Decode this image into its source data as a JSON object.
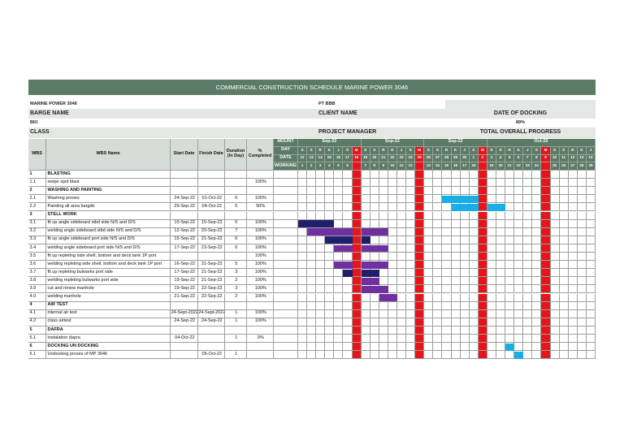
{
  "title": "COMMERCIAL CONSTRUCTION SCHEDULE MARINE POWER 3046",
  "info": {
    "vessel": "MARINE POWER 3046",
    "client": "PT BBB",
    "barge_label": "BARGE NAME",
    "client_label": "CLIENT NAME",
    "docking_label": "DATE OF DOCKING",
    "class_value": "BKI",
    "progress_value": "89%",
    "class_label": "CLASS",
    "manager_label": "PROJECT MANAGER",
    "progress_label": "TOTAL OVERALL PROGRESS"
  },
  "table": {
    "headers": [
      "WBS",
      "WBS Name",
      "Start Date",
      "Finish Date",
      "Duration (In Day)",
      "% Completed"
    ],
    "gantt_labels": [
      "MOUNT",
      "DAY",
      "DATE",
      "WORKING"
    ],
    "months": [
      "Sep-22",
      null,
      null,
      null,
      null,
      null,
      null,
      "Sep-22",
      null,
      null,
      null,
      null,
      null,
      null,
      "Sep-22",
      null,
      null,
      null,
      null,
      null,
      null,
      "Oct-22",
      null,
      null,
      null,
      null,
      null,
      null,
      null,
      null,
      null,
      null,
      null
    ],
    "days": [
      "S",
      "S",
      "R",
      "K",
      "J",
      "S",
      "M",
      "S",
      "S",
      "R",
      "K",
      "J",
      "S",
      "M",
      "S",
      "S",
      "R",
      "K",
      "J",
      "S",
      "M",
      "S",
      "S",
      "R",
      "K",
      "J",
      "S",
      "M",
      "S",
      "S",
      "R",
      "K",
      "J"
    ],
    "dates": [
      "12",
      "13",
      "14",
      "15",
      "16",
      "17",
      "18",
      "19",
      "20",
      "21",
      "22",
      "23",
      "24",
      "25",
      "26",
      "27",
      "28",
      "29",
      "30",
      "1",
      "2",
      "3",
      "4",
      "5",
      "6",
      "7",
      "8",
      "9",
      "10",
      "11",
      "12",
      "13",
      "14"
    ],
    "working": [
      "1",
      "2",
      "3",
      "4",
      "5",
      "6",
      null,
      "7",
      "8",
      "9",
      "10",
      "11",
      "12",
      null,
      "13",
      "14",
      "15",
      "16",
      "17",
      "18",
      null,
      "19",
      "20",
      "21",
      "22",
      "23",
      "24",
      null,
      "25",
      "26",
      "27",
      "28",
      "29"
    ],
    "holidays": [
      6,
      13,
      20,
      27
    ],
    "holiday_color": "#e8141c",
    "rows": [
      {
        "wbs": "1",
        "name": "BLASTING",
        "section": true
      },
      {
        "wbs": "1.1",
        "name": "swipe spot blast",
        "pct": "100%"
      },
      {
        "wbs": "2",
        "name": "WASHING AND PAINTING",
        "section": true
      },
      {
        "wbs": "2.1",
        "name": "Washing proses",
        "start": "24-Sep-22",
        "finish": "01-Oct-22",
        "duration": "6",
        "pct": "100%",
        "bars": [
          [
            16,
            19
          ]
        ],
        "color": "#1aaee6"
      },
      {
        "wbs": "2.2",
        "name": "Painting all area bargde",
        "start": "29-Sep-22",
        "finish": "04-Oct-22",
        "duration": "5",
        "pct": "50%",
        "bars": [
          [
            17,
            19
          ],
          [
            21,
            22
          ]
        ],
        "color": "#1aaee6"
      },
      {
        "wbs": "3",
        "name": "STELL WORK",
        "section": true
      },
      {
        "wbs": "3.1",
        "name": "fit up angle sideboard stbd side N/S and D/S",
        "start": "10-Sep-22",
        "finish": "15-Sep-22",
        "duration": "5",
        "pct": "100%",
        "bars": [
          [
            0,
            3
          ]
        ],
        "color": "#1f1f6e"
      },
      {
        "wbs": "3.2",
        "name": "welding angle sideboard stbd side N/S and D/S",
        "start": "12-Sep-22",
        "finish": "20-Sep-22",
        "duration": "7",
        "pct": "100%",
        "bars": [
          [
            1,
            5
          ],
          [
            7,
            9
          ]
        ],
        "color": "#7030a0"
      },
      {
        "wbs": "3.3",
        "name": "fit up angle sideboard port side N/S and D/S",
        "start": "15-Sep-22",
        "finish": "21-Sep-22",
        "duration": "6",
        "pct": "100%",
        "bars": [
          [
            3,
            5
          ],
          [
            7,
            7
          ]
        ],
        "color": "#1f1f6e"
      },
      {
        "wbs": "3.4",
        "name": "welding angle sideboard port side N/S and D/S",
        "start": "17-Sep-22",
        "finish": "23-Sep-22",
        "duration": "6",
        "pct": "100%",
        "bars": [
          [
            4,
            5
          ],
          [
            7,
            9
          ]
        ],
        "color": "#7030a0"
      },
      {
        "wbs": "3.5",
        "name": "fit up repleting side shell, bottom and deck tank 1P port",
        "pct": "100%"
      },
      {
        "wbs": "3.6",
        "name": "welding repleting side shell, bottom and deck tank 1P port",
        "start": "16-Sep-22",
        "finish": "21-Sep-22",
        "duration": "5",
        "pct": "100%",
        "bars": [
          [
            4,
            5
          ],
          [
            7,
            9
          ]
        ],
        "color": "#7030a0"
      },
      {
        "wbs": "3.7",
        "name": "fit up repleting bulwarks port side",
        "start": "17-Sep-22",
        "finish": "21-Sep-22",
        "duration": "3",
        "pct": "100%",
        "bars": [
          [
            5,
            5
          ],
          [
            7,
            8
          ]
        ],
        "color": "#1f1f6e"
      },
      {
        "wbs": "3.8",
        "name": "welding repleting bulwarks port side",
        "start": "19-Sep-22",
        "finish": "21-Sep-22",
        "duration": "2",
        "pct": "100%",
        "bars": [
          [
            7,
            8
          ]
        ],
        "color": "#7030a0"
      },
      {
        "wbs": "3.9",
        "name": "cut and renew manhole",
        "start": "19-Sep-22",
        "finish": "22-Sep-22",
        "duration": "3",
        "pct": "100%",
        "bars": [
          [
            7,
            9
          ]
        ],
        "color": "#7030a0"
      },
      {
        "wbs": "4.0",
        "name": "welding manhole",
        "start": "21-Sep-22",
        "finish": "22-Sep-22",
        "duration": "2",
        "pct": "100%",
        "bars": [
          [
            9,
            10
          ]
        ],
        "color": "#7030a0"
      },
      {
        "wbs": "4",
        "name": "AIR TEST",
        "section": true
      },
      {
        "wbs": "4.1",
        "name": "internal air test",
        "start": "24-Sept-2022",
        "finish": "24-Sept-2022",
        "duration": "1",
        "pct": "100%"
      },
      {
        "wbs": "4.2",
        "name": "class airtest",
        "start": "24-Sep-22",
        "finish": "24-Sep-22",
        "duration": "1",
        "pct": "100%"
      },
      {
        "wbs": "5",
        "name": "DAFRA",
        "section": true
      },
      {
        "wbs": "5.1",
        "name": "instalation dapra",
        "start": "04-Oct-22",
        "duration": "1",
        "pct": "0%"
      },
      {
        "wbs": "6",
        "name": "DOCKING UN DOCKING",
        "section": true,
        "bars": [
          [
            23,
            23
          ]
        ],
        "color": "#1aaee6"
      },
      {
        "wbs": "6.1",
        "name": "Undocking proses of MP 3046",
        "finish": "05-Oct-22",
        "duration": "1",
        "bars": [
          [
            24,
            24
          ]
        ],
        "color": "#1aaee6"
      }
    ]
  }
}
